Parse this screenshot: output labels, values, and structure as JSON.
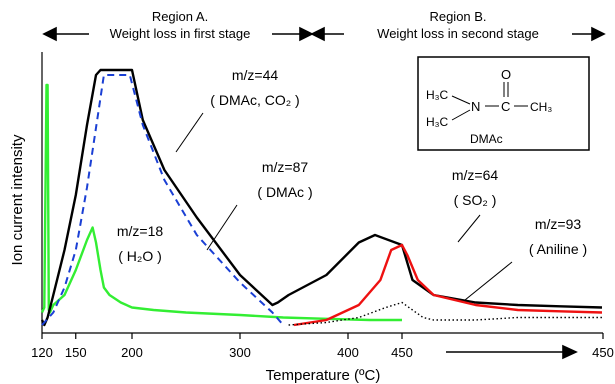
{
  "chart_data": {
    "type": "line",
    "xlabel": "Temperature (ºC)",
    "ylabel": "Ion current intensity",
    "x_ticks": [
      "120",
      "150",
      "200",
      "300",
      "400",
      "450",
      "450"
    ],
    "x_ticks_second": [
      "400",
      "450",
      "450"
    ],
    "grid": false,
    "legend": "none",
    "regions": [
      {
        "label": "Region A.",
        "sublabel": "Weight loss in first stage",
        "x_range": [
          120,
          340
        ]
      },
      {
        "label": "Region B.",
        "sublabel": "Weight loss in second stage",
        "x_range": [
          340,
          450
        ]
      }
    ],
    "series": [
      {
        "name": "m/z=18",
        "sub": "( H₂O )",
        "color": "#33ee33",
        "style": "solid",
        "x": [
          120,
          122,
          124,
          125,
          126,
          127,
          128,
          130,
          140,
          150,
          160,
          165,
          168,
          172,
          175,
          180,
          190,
          200,
          220,
          250,
          300,
          340,
          380,
          420,
          450
        ],
        "y": [
          0.05,
          0.07,
          0.96,
          0.96,
          0.06,
          0.05,
          0.06,
          0.08,
          0.12,
          0.22,
          0.34,
          0.39,
          0.33,
          0.22,
          0.15,
          0.12,
          0.09,
          0.07,
          0.06,
          0.05,
          0.04,
          0.03,
          0.025,
          0.02,
          0.02
        ]
      },
      {
        "name": "m/z=44",
        "sub": "( DMAc, CO₂ )",
        "color": "#000000",
        "style": "solid",
        "x": [
          120,
          122,
          125,
          130,
          140,
          150,
          160,
          168,
          172,
          200,
          210,
          230,
          260,
          300,
          330,
          335,
          345,
          380,
          410,
          425,
          450,
          460,
          480,
          520,
          560,
          600,
          640
        ],
        "y": [
          0.02,
          0.0,
          0.03,
          0.12,
          0.3,
          0.52,
          0.8,
          1.0,
          1.02,
          1.02,
          0.82,
          0.62,
          0.43,
          0.2,
          0.08,
          0.09,
          0.12,
          0.2,
          0.33,
          0.36,
          0.32,
          0.18,
          0.12,
          0.09,
          0.08,
          0.075,
          0.07
        ]
      },
      {
        "name": "m/z=87",
        "sub": "( DMAc )",
        "color": "#1a3fd4",
        "style": "dashed",
        "x": [
          120,
          130,
          140,
          150,
          160,
          170,
          175,
          198,
          210,
          230,
          260,
          300,
          330,
          340
        ],
        "y": [
          0.0,
          0.05,
          0.15,
          0.3,
          0.55,
          0.85,
          1.0,
          1.0,
          0.8,
          0.58,
          0.36,
          0.17,
          0.05,
          0.0
        ]
      },
      {
        "name": "m/z=64",
        "sub": "( SO₂ )",
        "color": "#ee1111",
        "style": "solid",
        "x": [
          350,
          380,
          410,
          430,
          440,
          450,
          455,
          465,
          480,
          520,
          560,
          600,
          640
        ],
        "y": [
          0.0,
          0.02,
          0.08,
          0.18,
          0.3,
          0.32,
          0.28,
          0.18,
          0.12,
          0.08,
          0.06,
          0.055,
          0.05
        ]
      },
      {
        "name": "m/z=93",
        "sub": "( Aniline )",
        "color": "#000000",
        "style": "dotted",
        "x": [
          345,
          380,
          410,
          435,
          450,
          460,
          470,
          480,
          520,
          560,
          600,
          640
        ],
        "y": [
          0.0,
          0.01,
          0.03,
          0.07,
          0.09,
          0.06,
          0.03,
          0.02,
          0.02,
          0.03,
          0.03,
          0.03
        ]
      }
    ],
    "inset": {
      "molecule": "DMAc",
      "atoms": [
        "H₃C",
        "H₃C",
        "N",
        "C",
        "O",
        "CH₃"
      ]
    }
  }
}
